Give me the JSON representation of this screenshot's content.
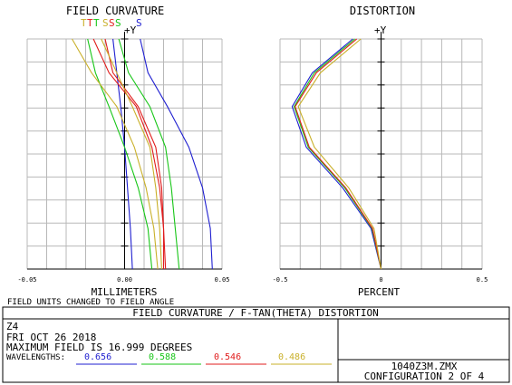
{
  "window_title": "FIELD CURVATURE / F-TAN(THETA) DISTORTION",
  "field_curvature": {
    "title": "FIELD CURVATURE",
    "ylabel": "+Y",
    "xlabel": "MILLIMETERS",
    "note": "FIELD UNITS CHANGED TO FIELD ANGLE",
    "legend_t": [
      "T",
      "T",
      "T"
    ],
    "legend_s": [
      "S",
      "S",
      "S",
      "S"
    ],
    "x_ticks": [
      "-0.05",
      "0.00",
      "0.05"
    ]
  },
  "distortion": {
    "title": "DISTORTION",
    "ylabel": "+Y",
    "xlabel": "PERCENT",
    "x_ticks": [
      "-0.5",
      "0",
      "0.5"
    ]
  },
  "info": {
    "lens": "Z4",
    "date": "FRI OCT 26 2018",
    "max_field": "MAXIMUM FIELD IS 16.999 DEGREES",
    "wavelengths_label": "WAVELENGTHS:",
    "wavelengths": [
      "0.656",
      "0.588",
      "0.546",
      "0.486"
    ],
    "file": "1040Z3M.ZMX",
    "configuration": "CONFIGURATION 2 OF 4"
  },
  "colors": {
    "w1": "#1f1fd0",
    "w2": "#17c617",
    "w3": "#e01c1c",
    "w4": "#c9b02a",
    "grid": "#b8b8b8",
    "axis": "#000000"
  },
  "chart_data": [
    {
      "type": "line",
      "title": "FIELD CURVATURE",
      "xlabel": "MILLIMETERS",
      "ylabel": "+Y",
      "xlim": [
        -0.05,
        0.05
      ],
      "ylim": [
        0,
        16.999
      ],
      "grid": true,
      "series": [
        {
          "color": "#1f1fd0",
          "wavelength": "0.656",
          "kind": "T",
          "x": [
            0.004,
            0.003,
            0.0015,
            0.0,
            -0.002,
            -0.004,
            -0.006
          ],
          "y": [
            0,
            3,
            6,
            9,
            12,
            14.5,
            17
          ]
        },
        {
          "color": "#1f1fd0",
          "wavelength": "0.656",
          "kind": "S",
          "x": [
            0.045,
            0.044,
            0.04,
            0.033,
            0.022,
            0.012,
            0.008
          ],
          "y": [
            0,
            3,
            6,
            9,
            12,
            14.5,
            17
          ]
        },
        {
          "color": "#17c617",
          "wavelength": "0.588",
          "kind": "T",
          "x": [
            0.014,
            0.012,
            0.007,
            0.0,
            -0.008,
            -0.015,
            -0.019
          ],
          "y": [
            0,
            3,
            6,
            9,
            12,
            14.5,
            17
          ]
        },
        {
          "color": "#17c617",
          "wavelength": "0.588",
          "kind": "S",
          "x": [
            0.028,
            0.026,
            0.024,
            0.021,
            0.013,
            0.002,
            -0.003
          ],
          "y": [
            0,
            3,
            6,
            9,
            12,
            14.5,
            17
          ]
        },
        {
          "color": "#e01c1c",
          "wavelength": "0.546",
          "kind": "T",
          "x": [
            0.02,
            0.02,
            0.019,
            0.016,
            0.007,
            -0.006,
            -0.01
          ],
          "y": [
            0,
            3,
            6,
            9,
            12,
            14.5,
            17
          ]
        },
        {
          "color": "#e01c1c",
          "wavelength": "0.546",
          "kind": "S",
          "x": [
            0.021,
            0.02,
            0.018,
            0.014,
            0.006,
            -0.008,
            -0.016
          ],
          "y": [
            0,
            3,
            6,
            9,
            12,
            14.5,
            17
          ]
        },
        {
          "color": "#c9b02a",
          "wavelength": "0.486",
          "kind": "T",
          "x": [
            0.017,
            0.015,
            0.011,
            0.005,
            -0.004,
            -0.017,
            -0.027
          ],
          "y": [
            0,
            3,
            6,
            9,
            12,
            14.5,
            17
          ]
        },
        {
          "color": "#c9b02a",
          "wavelength": "0.486",
          "kind": "S",
          "x": [
            0.019,
            0.018,
            0.016,
            0.013,
            0.004,
            -0.004,
            -0.012
          ],
          "y": [
            0,
            3,
            6,
            9,
            12,
            14.5,
            17
          ]
        }
      ]
    },
    {
      "type": "line",
      "title": "DISTORTION",
      "xlabel": "PERCENT",
      "ylabel": "+Y",
      "xlim": [
        -0.5,
        0.5
      ],
      "ylim": [
        0,
        16.999
      ],
      "grid": true,
      "series": [
        {
          "color": "#1f1fd0",
          "wavelength": "0.656",
          "x": [
            0,
            -0.05,
            -0.19,
            -0.37,
            -0.44,
            -0.34,
            -0.14
          ],
          "y": [
            0,
            3,
            6,
            9,
            12,
            14.5,
            17
          ]
        },
        {
          "color": "#17c617",
          "wavelength": "0.588",
          "x": [
            0,
            -0.045,
            -0.18,
            -0.36,
            -0.43,
            -0.33,
            -0.13
          ],
          "y": [
            0,
            3,
            6,
            9,
            12,
            14.5,
            17
          ]
        },
        {
          "color": "#e01c1c",
          "wavelength": "0.546",
          "x": [
            0,
            -0.042,
            -0.175,
            -0.355,
            -0.425,
            -0.32,
            -0.12
          ],
          "y": [
            0,
            3,
            6,
            9,
            12,
            14.5,
            17
          ]
        },
        {
          "color": "#c9b02a",
          "wavelength": "0.486",
          "x": [
            0,
            -0.035,
            -0.16,
            -0.33,
            -0.41,
            -0.3,
            -0.1
          ],
          "y": [
            0,
            3,
            6,
            9,
            12,
            14.5,
            17
          ]
        }
      ]
    }
  ]
}
